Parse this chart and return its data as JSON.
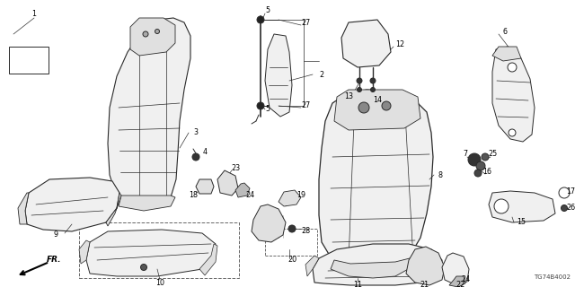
{
  "bg_color": "#ffffff",
  "diagram_code": "TG74B4002",
  "line_color": "#2a2a2a",
  "fill_light": "#f0f0f0",
  "fill_mid": "#e0e0e0",
  "fill_dark": "#c8c8c8"
}
